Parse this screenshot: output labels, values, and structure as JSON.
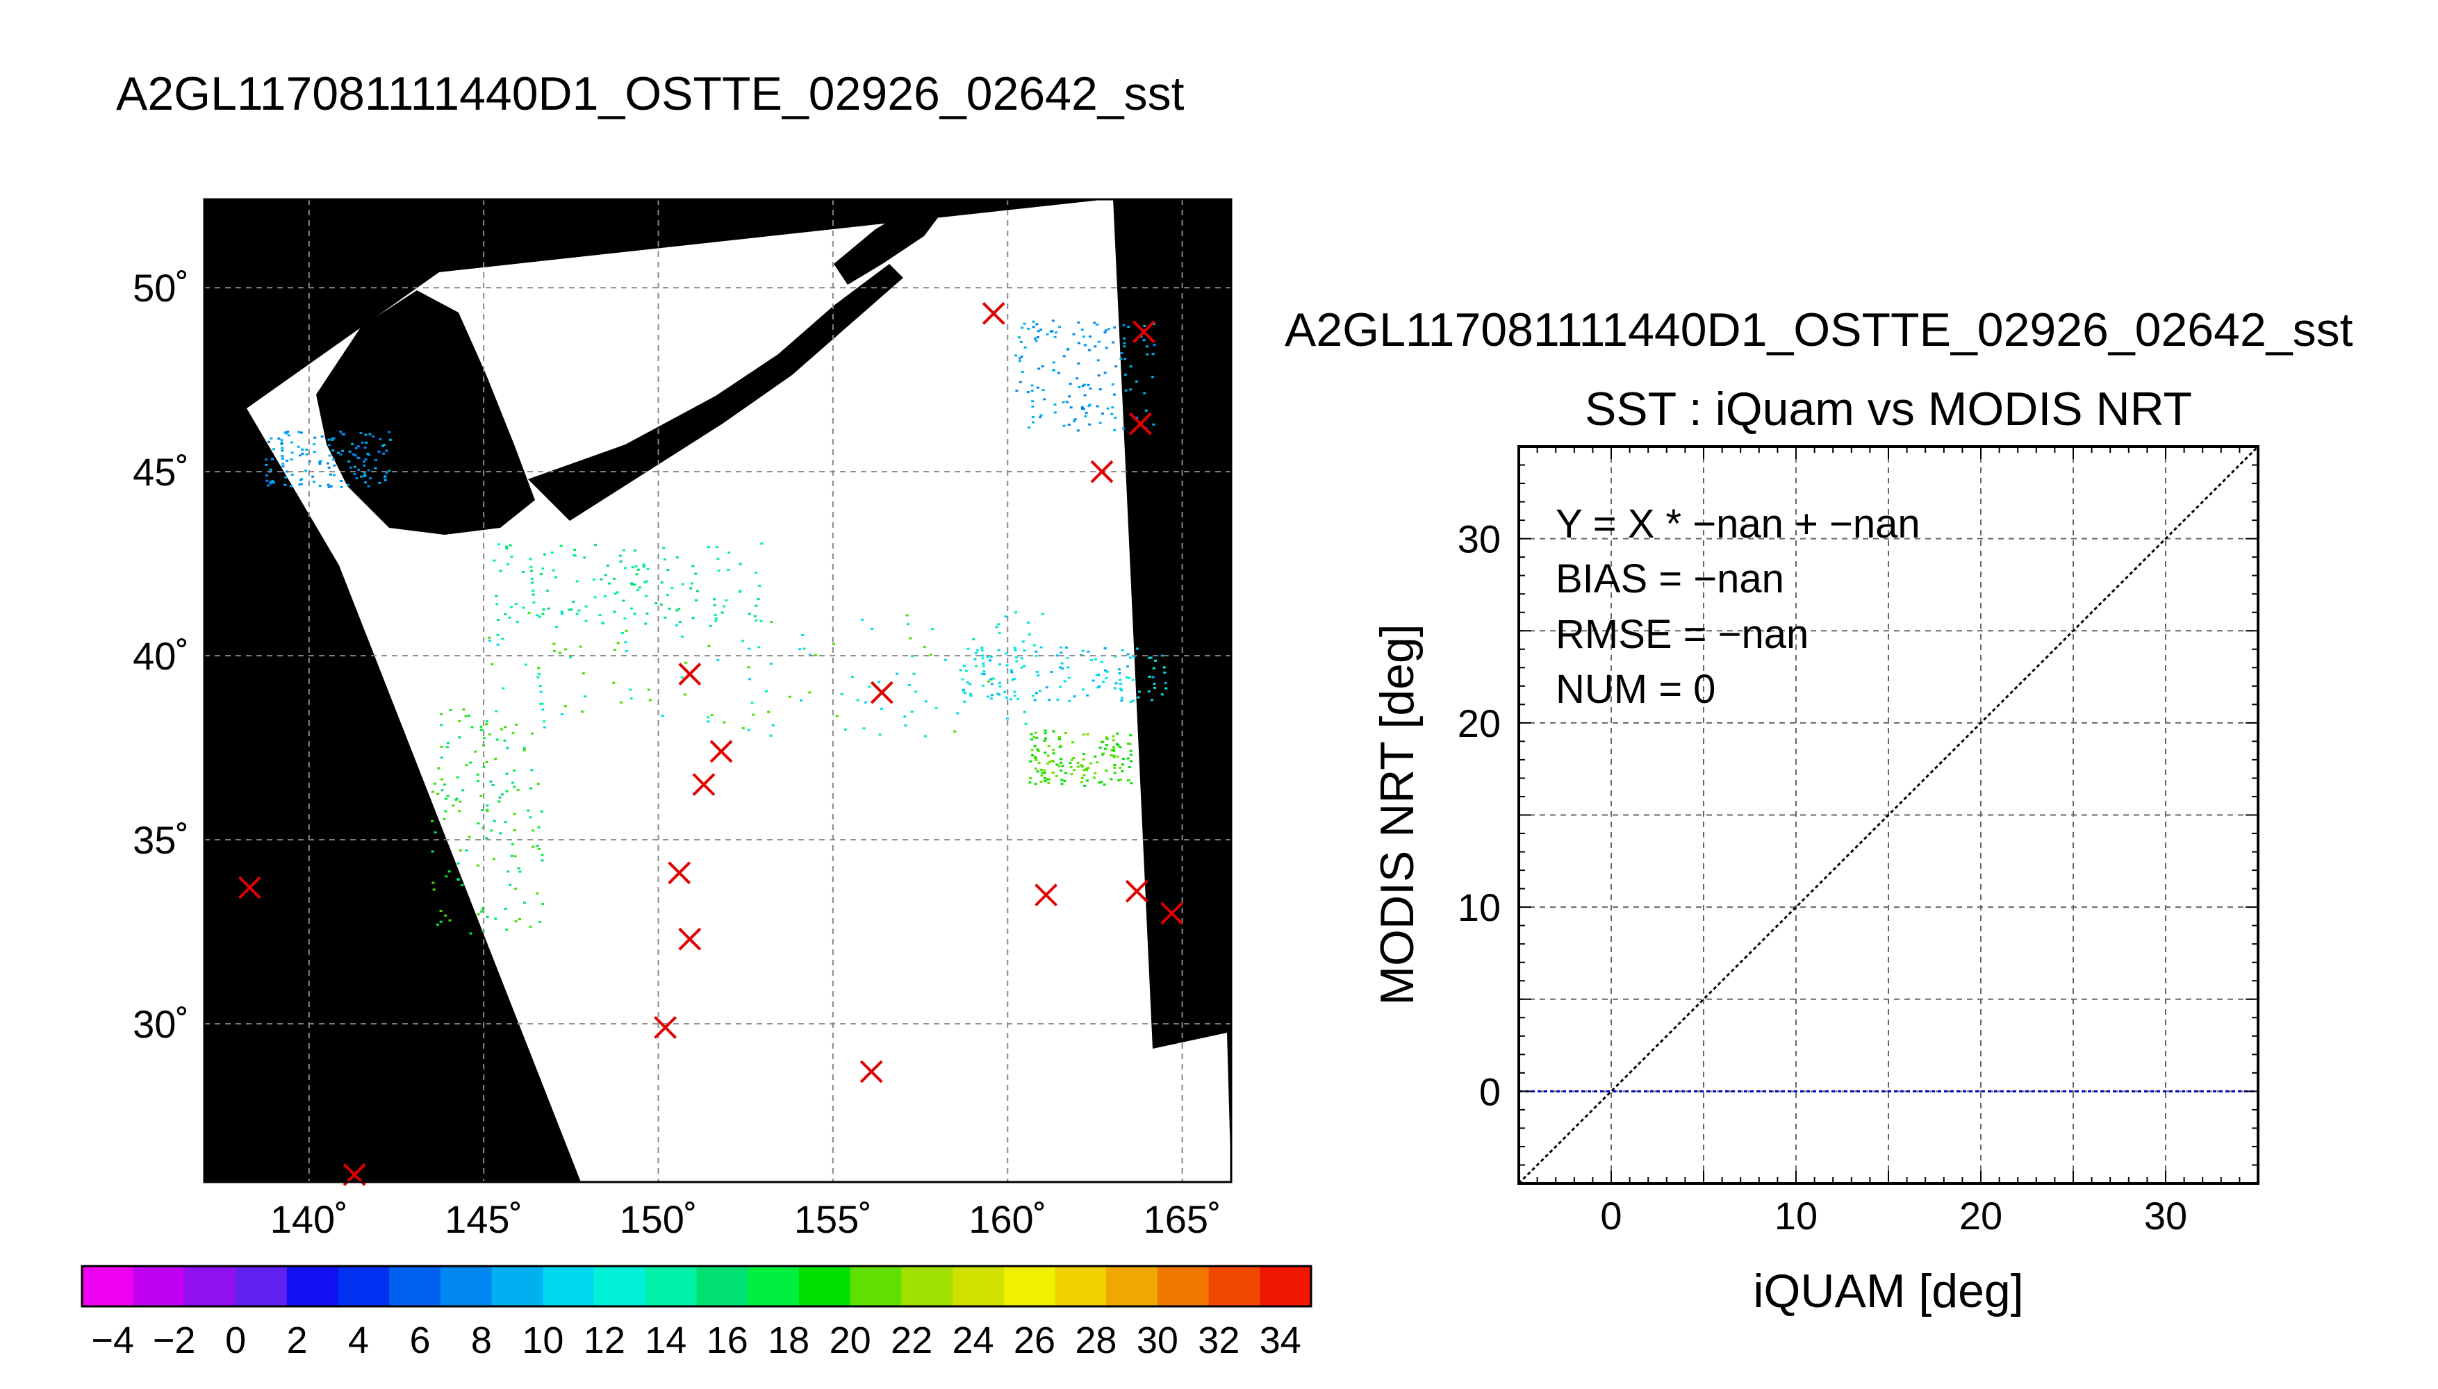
{
  "chart_data": [
    {
      "type": "map",
      "title": "A2GL117081111440D1_OSTTE_02926_02642_sst",
      "lon_ticks": [
        "140˚",
        "145˚",
        "150˚",
        "155˚",
        "160˚",
        "165˚"
      ],
      "lat_ticks": [
        "50˚",
        "45˚",
        "40˚",
        "35˚",
        "30˚"
      ],
      "lon_range": [
        137.0,
        166.4
      ],
      "lat_range": [
        25.7,
        52.4
      ],
      "colorbar": {
        "range": [
          -5,
          35
        ],
        "ticks": [
          "−4",
          "−2",
          "0",
          "2",
          "4",
          "6",
          "8",
          "10",
          "12",
          "14",
          "16",
          "18",
          "20",
          "22",
          "24",
          "26",
          "28",
          "30",
          "32",
          "34"
        ],
        "colors": [
          "#f000f0",
          "#c000f0",
          "#9010f0",
          "#6020f0",
          "#1010f0",
          "#0030f0",
          "#0060f0",
          "#0088f0",
          "#00b0f0",
          "#00d8f0",
          "#00f0d8",
          "#00f0a8",
          "#00e070",
          "#00f040",
          "#00e000",
          "#60e000",
          "#a0e000",
          "#d0e000",
          "#f0f000",
          "#f0d000",
          "#f0a800",
          "#f07800",
          "#f04800",
          "#f01800"
        ]
      },
      "markers": [
        {
          "lon": 138.3,
          "lat": 33.7
        },
        {
          "lon": 141.3,
          "lat": 25.9
        },
        {
          "lon": 150.2,
          "lat": 29.9
        },
        {
          "lon": 150.6,
          "lat": 34.1
        },
        {
          "lon": 150.9,
          "lat": 32.3
        },
        {
          "lon": 150.9,
          "lat": 39.5
        },
        {
          "lon": 151.3,
          "lat": 36.5
        },
        {
          "lon": 151.8,
          "lat": 37.4
        },
        {
          "lon": 156.1,
          "lat": 28.7
        },
        {
          "lon": 156.4,
          "lat": 39.0
        },
        {
          "lon": 159.6,
          "lat": 49.3
        },
        {
          "lon": 161.1,
          "lat": 33.5
        },
        {
          "lon": 162.7,
          "lat": 45.0
        },
        {
          "lon": 163.7,
          "lat": 33.6
        },
        {
          "lon": 163.8,
          "lat": 46.3
        },
        {
          "lon": 163.9,
          "lat": 48.8
        },
        {
          "lon": 164.7,
          "lat": 33.0
        }
      ],
      "marker_color": "#e00000"
    },
    {
      "type": "scatter",
      "title": "A2GL117081111440D1_OSTTE_02926_02642_sst",
      "subtitle": "SST : iQuam vs MODIS NRT",
      "xlabel": "iQUAM [deg]",
      "ylabel": "MODIS NRT [deg]",
      "xlim": [
        -5,
        35
      ],
      "ylim": [
        -5,
        35
      ],
      "xticks": [
        0,
        10,
        20,
        30
      ],
      "yticks": [
        0,
        10,
        20,
        30
      ],
      "grid_step": 5,
      "stats": [
        "Y = X * −nan + −nan",
        "BIAS = −nan",
        "RMSE = −nan",
        "NUM = 0"
      ],
      "identity_line_color": "#000000",
      "zero_line_color": "#0000c0",
      "points": []
    }
  ]
}
